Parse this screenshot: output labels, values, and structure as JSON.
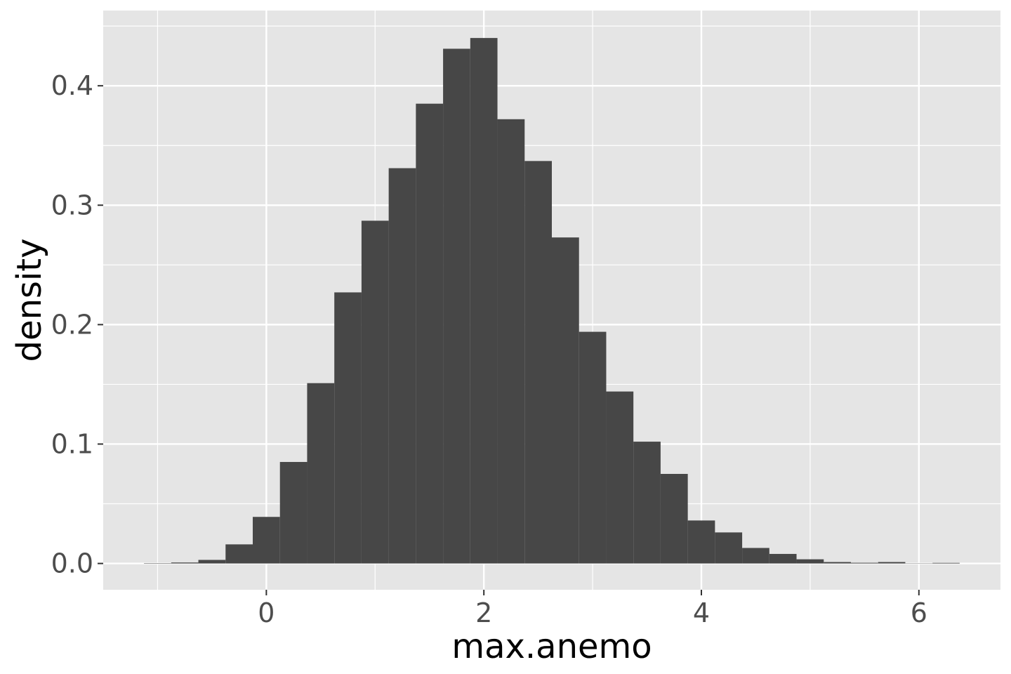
{
  "chart_data": {
    "type": "bar",
    "subtype": "histogram",
    "title": "",
    "xlabel": "max.anemo",
    "ylabel": "density",
    "xlim": [
      -1.5,
      6.75
    ],
    "ylim": [
      -0.022,
      0.463
    ],
    "x_ticks": [
      0,
      2,
      4,
      6
    ],
    "x_tick_labels": [
      "0",
      "2",
      "4",
      "6"
    ],
    "y_ticks": [
      0.0,
      0.1,
      0.2,
      0.3,
      0.4
    ],
    "y_tick_labels": [
      "0.0",
      "0.1",
      "0.2",
      "0.3",
      "0.4"
    ],
    "grid": true,
    "legend": "none",
    "bin_width": 0.25,
    "bins": [
      {
        "x0": -1.125,
        "x1": -0.875,
        "value": 0.0003
      },
      {
        "x0": -0.875,
        "x1": -0.625,
        "value": 0.0008
      },
      {
        "x0": -0.625,
        "x1": -0.375,
        "value": 0.003
      },
      {
        "x0": -0.375,
        "x1": -0.125,
        "value": 0.016
      },
      {
        "x0": -0.125,
        "x1": 0.125,
        "value": 0.039
      },
      {
        "x0": 0.125,
        "x1": 0.375,
        "value": 0.085
      },
      {
        "x0": 0.375,
        "x1": 0.625,
        "value": 0.151
      },
      {
        "x0": 0.625,
        "x1": 0.875,
        "value": 0.227
      },
      {
        "x0": 0.875,
        "x1": 1.125,
        "value": 0.287
      },
      {
        "x0": 1.125,
        "x1": 1.375,
        "value": 0.331
      },
      {
        "x0": 1.375,
        "x1": 1.625,
        "value": 0.385
      },
      {
        "x0": 1.625,
        "x1": 1.875,
        "value": 0.431
      },
      {
        "x0": 1.875,
        "x1": 2.125,
        "value": 0.44
      },
      {
        "x0": 2.125,
        "x1": 2.375,
        "value": 0.372
      },
      {
        "x0": 2.375,
        "x1": 2.625,
        "value": 0.337
      },
      {
        "x0": 2.625,
        "x1": 2.875,
        "value": 0.273
      },
      {
        "x0": 2.875,
        "x1": 3.125,
        "value": 0.194
      },
      {
        "x0": 3.125,
        "x1": 3.375,
        "value": 0.144
      },
      {
        "x0": 3.375,
        "x1": 3.625,
        "value": 0.102
      },
      {
        "x0": 3.625,
        "x1": 3.875,
        "value": 0.075
      },
      {
        "x0": 3.875,
        "x1": 4.125,
        "value": 0.036
      },
      {
        "x0": 4.125,
        "x1": 4.375,
        "value": 0.026
      },
      {
        "x0": 4.375,
        "x1": 4.625,
        "value": 0.013
      },
      {
        "x0": 4.625,
        "x1": 4.875,
        "value": 0.008
      },
      {
        "x0": 4.875,
        "x1": 5.125,
        "value": 0.0035
      },
      {
        "x0": 5.125,
        "x1": 5.375,
        "value": 0.0012
      },
      {
        "x0": 5.375,
        "x1": 5.625,
        "value": 0.0006
      },
      {
        "x0": 5.625,
        "x1": 5.875,
        "value": 0.0012
      },
      {
        "x0": 5.875,
        "x1": 6.125,
        "value": 0.0002
      },
      {
        "x0": 6.125,
        "x1": 6.375,
        "value": 0.0005
      }
    ],
    "colors": {
      "panel_background": "#e5e5e5",
      "grid_major": "#ffffff",
      "bar_fill": "#474747",
      "tick_text": "#4d4d4d",
      "tick_mark": "#333333",
      "title_text": "#000000"
    }
  }
}
